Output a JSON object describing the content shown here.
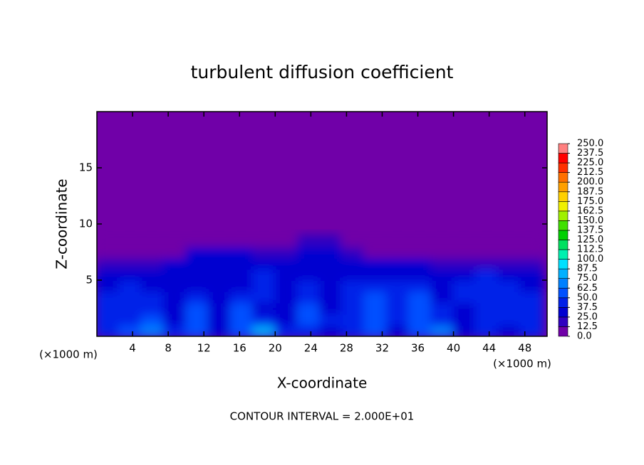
{
  "chart_data": {
    "type": "contour",
    "title": "turbulent diffusion coefficient",
    "xlabel": "X-coordinate",
    "ylabel": "Z-coordinate",
    "xunit": "(×1000 m)",
    "xunit_right": "(×1000 m)",
    "footnote": "CONTOUR INTERVAL = 2.000E+01",
    "xlim": [
      0,
      50.5
    ],
    "ylim": [
      0,
      20
    ],
    "xticks": [
      4,
      8,
      12,
      16,
      20,
      24,
      28,
      32,
      36,
      40,
      44,
      48
    ],
    "yticks": [
      5,
      10,
      15
    ],
    "x": [
      1.25,
      3.75,
      6.25,
      8.75,
      11.25,
      13.75,
      16.25,
      18.75,
      21.25,
      23.75,
      26.25,
      28.75,
      31.25,
      33.75,
      36.25,
      38.75,
      41.25,
      43.75,
      46.25,
      48.75
    ],
    "z": [
      0.5,
      1.5,
      2.5,
      3.5,
      4.5,
      5.5,
      6.5,
      7.5,
      8.5
    ],
    "values": [
      [
        45,
        50,
        70,
        40,
        60,
        30,
        55,
        75,
        40,
        45,
        35,
        40,
        60,
        35,
        55,
        70,
        30,
        40,
        35,
        45
      ],
      [
        40,
        45,
        55,
        35,
        55,
        30,
        60,
        40,
        35,
        50,
        40,
        45,
        55,
        40,
        60,
        45,
        35,
        45,
        40,
        40
      ],
      [
        45,
        40,
        45,
        30,
        50,
        30,
        55,
        35,
        30,
        50,
        35,
        40,
        60,
        45,
        55,
        40,
        35,
        40,
        45,
        40
      ],
      [
        40,
        40,
        40,
        30,
        40,
        30,
        45,
        40,
        35,
        45,
        30,
        40,
        55,
        40,
        50,
        35,
        40,
        40,
        45,
        40
      ],
      [
        35,
        40,
        35,
        30,
        35,
        30,
        35,
        45,
        30,
        40,
        30,
        40,
        45,
        40,
        45,
        35,
        40,
        45,
        40,
        35
      ],
      [
        30,
        30,
        30,
        35,
        30,
        35,
        35,
        40,
        30,
        35,
        35,
        35,
        35,
        35,
        35,
        35,
        35,
        40,
        35,
        35
      ],
      [
        15,
        15,
        20,
        30,
        30,
        30,
        30,
        30,
        30,
        30,
        30,
        30,
        25,
        30,
        25,
        20,
        20,
        20,
        15,
        20
      ],
      [
        0,
        0,
        0,
        5,
        25,
        25,
        25,
        20,
        20,
        25,
        25,
        20,
        10,
        5,
        5,
        0,
        0,
        0,
        0,
        0
      ],
      [
        0,
        0,
        0,
        0,
        0,
        0,
        0,
        0,
        0,
        20,
        20,
        0,
        0,
        0,
        0,
        0,
        0,
        0,
        0,
        0
      ]
    ],
    "clim": [
      0,
      250
    ],
    "levels": [
      {
        "value": 0,
        "label": "0.0"
      },
      12.5,
      {
        "value": 25,
        "label": "25.0"
      },
      37.5,
      {
        "value": 50,
        "label": "50.0"
      },
      62.5,
      {
        "value": 75,
        "label": "75.0"
      },
      87.5,
      {
        "value": 100,
        "label": "100.0"
      },
      112.5,
      {
        "value": 125,
        "label": "125.0"
      },
      137.5,
      {
        "value": 150,
        "label": "150.0"
      },
      162.5,
      {
        "value": 175,
        "label": "175.0"
      },
      187.5,
      {
        "value": 200,
        "label": "200.0"
      },
      212.5,
      {
        "value": 225,
        "label": "225.0"
      },
      237.5,
      {
        "value": 250,
        "label": "250.0"
      }
    ],
    "colors": [
      "#7000a8",
      "#3000c0",
      "#0000d0",
      "#0020e8",
      "#0050ff",
      "#0080ff",
      "#00b0ff",
      "#00e0ff",
      "#00f0b0",
      "#00e060",
      "#00d000",
      "#40e000",
      "#a0f000",
      "#f0f000",
      "#ffd000",
      "#ffa000",
      "#ff7000",
      "#ff3000",
      "#ff0000",
      "#ff8080"
    ]
  }
}
